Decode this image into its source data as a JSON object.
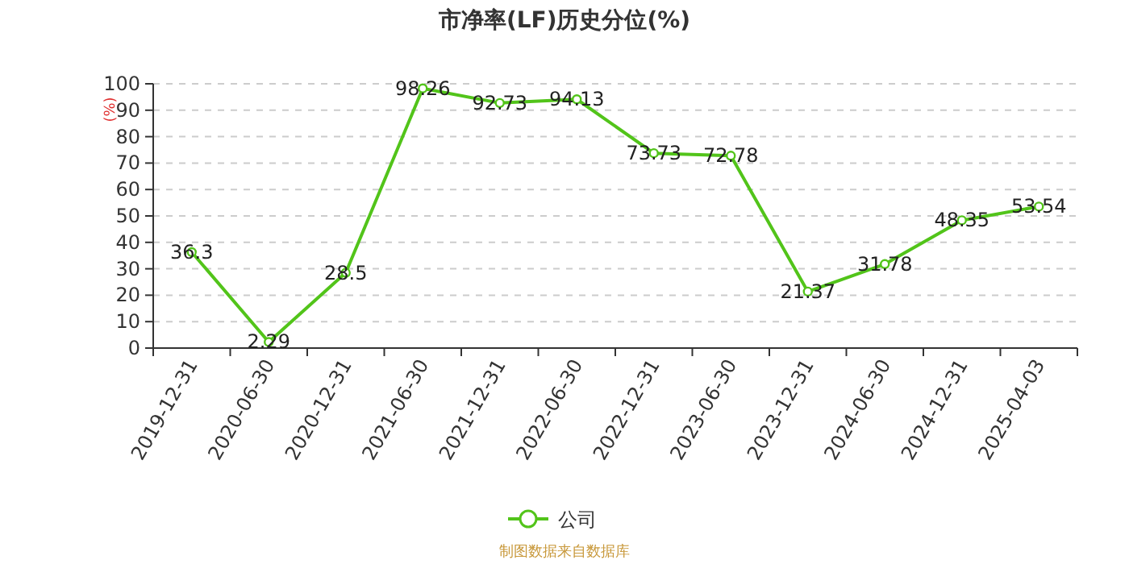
{
  "chart_data": {
    "type": "line",
    "title": "市净率(LF)历史分位(%)",
    "ylabel": "(%)",
    "categories": [
      "2019-12-31",
      "2020-06-30",
      "2020-12-31",
      "2021-06-30",
      "2021-12-31",
      "2022-06-30",
      "2022-12-31",
      "2023-06-30",
      "2023-12-31",
      "2024-06-30",
      "2024-12-31",
      "2025-04-03"
    ],
    "series": [
      {
        "name": "公司",
        "color": "#52c41a",
        "values": [
          36.3,
          2.29,
          28.5,
          98.26,
          92.73,
          94.13,
          73.73,
          72.78,
          21.37,
          31.78,
          48.35,
          53.54
        ]
      }
    ],
    "ylim": [
      0,
      100
    ],
    "yticks": [
      0,
      10,
      20,
      30,
      40,
      50,
      60,
      70,
      80,
      90,
      100
    ],
    "grid": "y",
    "legend": "bottom",
    "marker": "circle",
    "data_labels": true,
    "annotations": [
      "制图数据来自数据库"
    ]
  }
}
